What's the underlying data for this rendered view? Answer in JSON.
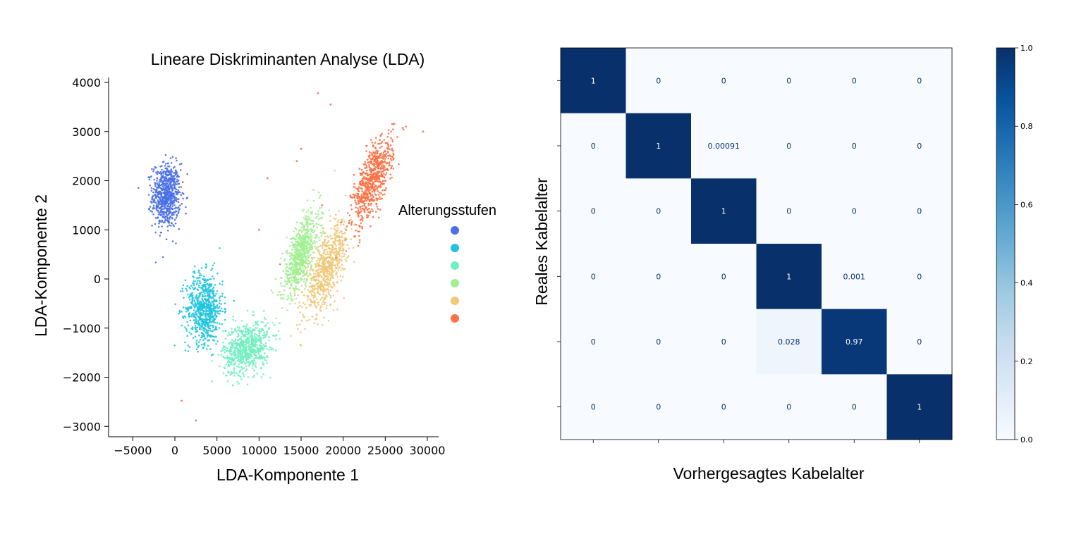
{
  "chart_data": [
    {
      "type": "scatter",
      "title": "Lineare Diskriminanten Analyse (LDA)",
      "xlabel": "LDA-Komponente 1",
      "ylabel": "LDA-Komponente 2",
      "xlim": [
        -7000,
        31000
      ],
      "ylim": [
        -3200,
        4100
      ],
      "xticks": [
        -5000,
        0,
        5000,
        10000,
        15000,
        20000,
        25000,
        30000
      ],
      "xtick_labels": [
        "−5000",
        "0",
        "5000",
        "10000",
        "15000",
        "20000",
        "25000",
        "30000"
      ],
      "yticks": [
        -3000,
        -2000,
        -1000,
        0,
        1000,
        2000,
        3000,
        4000
      ],
      "ytick_labels": [
        "−3000",
        "−2000",
        "−1000",
        "0",
        "1000",
        "2000",
        "3000",
        "4000"
      ],
      "legend": {
        "title": "Alterungsstufen",
        "placement": "right"
      },
      "grid": false,
      "series": [
        {
          "color": "#4a6fe8",
          "center": [
            -1000,
            1700
          ],
          "spread": [
            1500,
            500
          ],
          "approx_points": 2500
        },
        {
          "color": "#20c4e0",
          "center": [
            3500,
            -600
          ],
          "spread": [
            2000,
            550
          ],
          "approx_points": 2200
        },
        {
          "color": "#70f0c0",
          "center": [
            8500,
            -1400
          ],
          "spread": [
            2500,
            400
          ],
          "approx_points": 2500
        },
        {
          "color": "#a0f090",
          "center": [
            15000,
            500
          ],
          "spread": [
            2000,
            500
          ],
          "approx_points": 1800
        },
        {
          "color": "#f0c878",
          "center": [
            18000,
            200
          ],
          "spread": [
            2300,
            500
          ],
          "approx_points": 2000
        },
        {
          "color": "#ff7043",
          "center": [
            23500,
            2000
          ],
          "spread": [
            2200,
            500
          ],
          "approx_points": 2500
        }
      ],
      "outliers": [
        {
          "x": 17000,
          "y": 3780
        },
        {
          "x": 18500,
          "y": 3550
        },
        {
          "x": 2500,
          "y": -2880
        },
        {
          "x": 800,
          "y": -2480
        },
        {
          "x": 15000,
          "y": 2650
        },
        {
          "x": 10000,
          "y": 1000
        },
        {
          "x": 11000,
          "y": 2050
        },
        {
          "x": 14500,
          "y": 2400
        },
        {
          "x": 29500,
          "y": 3000
        },
        {
          "x": 17500,
          "y": 1500
        },
        {
          "x": 12500,
          "y": 300
        }
      ]
    },
    {
      "type": "heatmap",
      "xlabel": "Vorhergesagtes Kabelalter",
      "ylabel": "Reales Kabelalter",
      "cmap": "Blues",
      "colorbar": {
        "range": [
          0.0,
          1.0
        ],
        "ticks": [
          0.0,
          0.2,
          0.4,
          0.6,
          0.8,
          1.0
        ],
        "tick_labels": [
          "0.0",
          "0.2",
          "0.4",
          "0.6",
          "0.8",
          "1.0"
        ]
      },
      "values": [
        [
          1,
          0,
          0,
          0,
          0,
          0
        ],
        [
          0,
          1,
          0.00091,
          0,
          0,
          0
        ],
        [
          0,
          0,
          1,
          0,
          0,
          0
        ],
        [
          0,
          0,
          0,
          1,
          0.001,
          0
        ],
        [
          0,
          0,
          0,
          0.028,
          0.97,
          0
        ],
        [
          0,
          0,
          0,
          0,
          0,
          1
        ]
      ],
      "cell_labels": [
        [
          "1",
          "0",
          "0",
          "0",
          "0",
          "0"
        ],
        [
          "0",
          "1",
          "0.00091",
          "0",
          "0",
          "0"
        ],
        [
          "0",
          "0",
          "1",
          "0",
          "0",
          "0"
        ],
        [
          "0",
          "0",
          "0",
          "1",
          "0.001",
          "0"
        ],
        [
          "0",
          "0",
          "0",
          "0.028",
          "0.97",
          "0"
        ],
        [
          "0",
          "0",
          "0",
          "0",
          "0",
          "1"
        ]
      ]
    }
  ]
}
